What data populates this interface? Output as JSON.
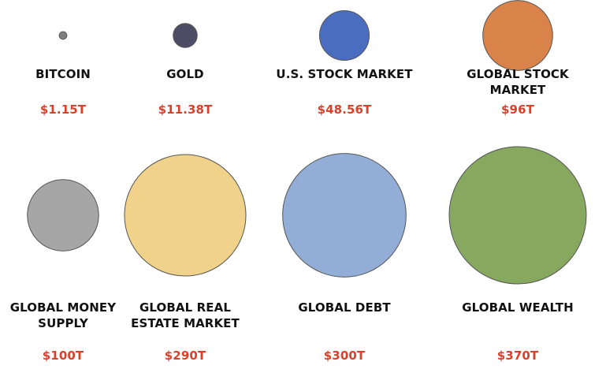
{
  "chart_data": {
    "type": "bubble",
    "unit": "trillion USD",
    "items": [
      {
        "label_lines": [
          "BITCOIN"
        ],
        "value_label": "$1.15T",
        "value": 1.15,
        "color": "#7f7f7f"
      },
      {
        "label_lines": [
          "GOLD"
        ],
        "value_label": "$11.38T",
        "value": 11.38,
        "color": "#4d4d66"
      },
      {
        "label_lines": [
          "U.S. STOCK MARKET"
        ],
        "value_label": "$48.56T",
        "value": 48.56,
        "color": "#4a6dc0"
      },
      {
        "label_lines": [
          "GLOBAL STOCK",
          "MARKET"
        ],
        "value_label": "$96T",
        "value": 96,
        "color": "#d9834a"
      },
      {
        "label_lines": [
          "GLOBAL MONEY",
          "SUPPLY"
        ],
        "value_label": "$100T",
        "value": 100,
        "color": "#a6a6a6"
      },
      {
        "label_lines": [
          "GLOBAL REAL",
          "ESTATE MARKET"
        ],
        "value_label": "$290T",
        "value": 290,
        "color": "#f1d28a"
      },
      {
        "label_lines": [
          "GLOBAL DEBT"
        ],
        "value_label": "$300T",
        "value": 300,
        "color": "#92aed6"
      },
      {
        "label_lines": [
          "GLOBAL WEALTH"
        ],
        "value_label": "$370T",
        "value": 370,
        "color": "#86a95f"
      }
    ],
    "value_color": "#d9412a",
    "label_color": "#111111"
  }
}
